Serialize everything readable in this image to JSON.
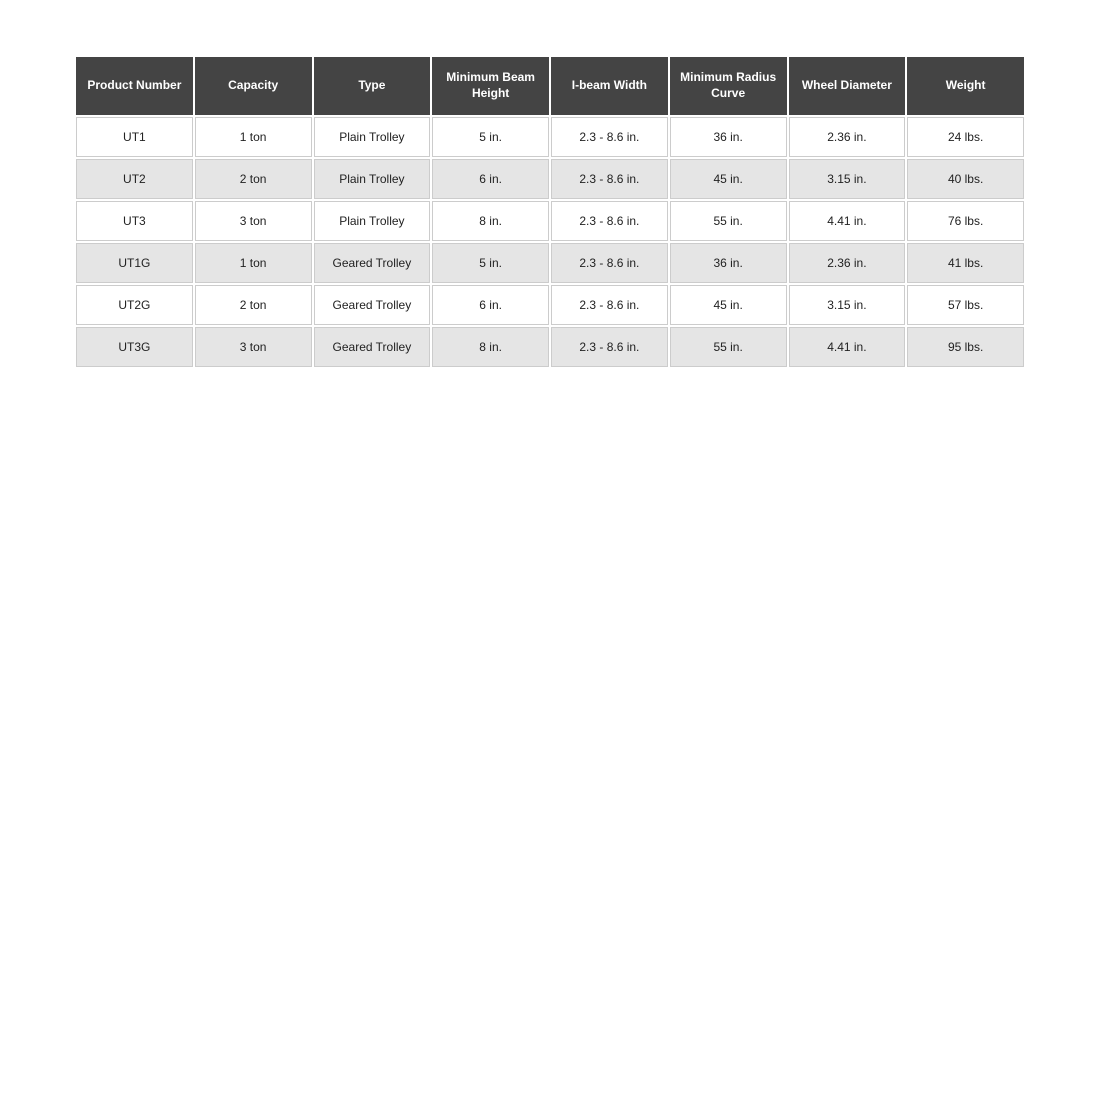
{
  "table": {
    "columns": [
      "Product Number",
      "Capacity",
      "Type",
      "Minimum Beam Height",
      "I-beam Width",
      "Minimum Radius Curve",
      "Wheel Diameter",
      "Weight"
    ],
    "rows": [
      [
        "UT1",
        "1 ton",
        "Plain Trolley",
        "5 in.",
        "2.3 - 8.6 in.",
        "36 in.",
        "2.36 in.",
        "24 lbs."
      ],
      [
        "UT2",
        "2 ton",
        "Plain Trolley",
        "6 in.",
        "2.3 - 8.6 in.",
        "45 in.",
        "3.15 in.",
        "40 lbs."
      ],
      [
        "UT3",
        "3 ton",
        "Plain Trolley",
        "8 in.",
        "2.3 - 8.6 in.",
        "55 in.",
        "4.41 in.",
        "76 lbs."
      ],
      [
        "UT1G",
        "1 ton",
        "Geared Trolley",
        "5 in.",
        "2.3 - 8.6 in.",
        "36 in.",
        "2.36 in.",
        "41 lbs."
      ],
      [
        "UT2G",
        "2 ton",
        "Geared Trolley",
        "6 in.",
        "2.3 - 8.6 in.",
        "45 in.",
        "3.15 in.",
        "57 lbs."
      ],
      [
        "UT3G",
        "3 ton",
        "Geared Trolley",
        "8 in.",
        "2.3 - 8.6 in.",
        "55 in.",
        "4.41 in.",
        "95 lbs."
      ]
    ],
    "header_bg": "#444444",
    "header_fg": "#ffffff",
    "row_odd_bg": "#ffffff",
    "row_even_bg": "#e5e5e5",
    "cell_border": "#cccccc",
    "header_fontsize": 12,
    "cell_fontsize": 12,
    "font_weight_header": 700
  }
}
